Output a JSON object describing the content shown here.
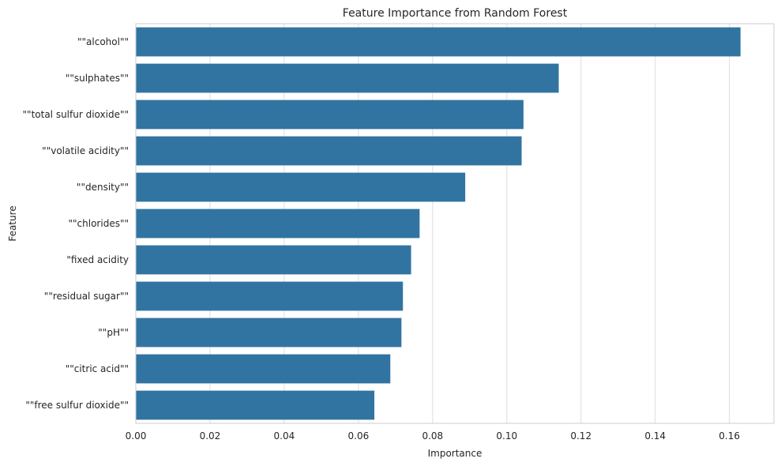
{
  "chart_data": {
    "type": "bar",
    "orientation": "horizontal",
    "title": "Feature Importance from Random Forest",
    "xlabel": "Importance",
    "ylabel": "Feature",
    "categories": [
      "\"\"alcohol\"\"",
      "\"\"sulphates\"\"",
      "\"\"total sulfur dioxide\"\"",
      "\"\"volatile acidity\"\"",
      "\"\"density\"\"",
      "\"\"chlorides\"\"",
      "\"fixed acidity",
      "\"\"residual sugar\"\"",
      "\"\"pH\"\"",
      "\"\"citric acid\"\"",
      "\"\"free sulfur dioxide\"\""
    ],
    "values": [
      0.163,
      0.114,
      0.1045,
      0.104,
      0.0888,
      0.0765,
      0.0742,
      0.072,
      0.0716,
      0.0686,
      0.0643
    ],
    "xlim": [
      0,
      0.172
    ],
    "xticks": [
      0.0,
      0.02,
      0.04,
      0.06,
      0.08,
      0.1,
      0.12,
      0.14,
      0.16
    ],
    "xtick_labels": [
      "0.00",
      "0.02",
      "0.04",
      "0.06",
      "0.08",
      "0.10",
      "0.12",
      "0.14",
      "0.16"
    ],
    "grid": "vertical",
    "colors": {
      "bar": "#3274a1",
      "grid": "#dddddd",
      "axis": "#cccccc",
      "text": "#262626"
    }
  }
}
